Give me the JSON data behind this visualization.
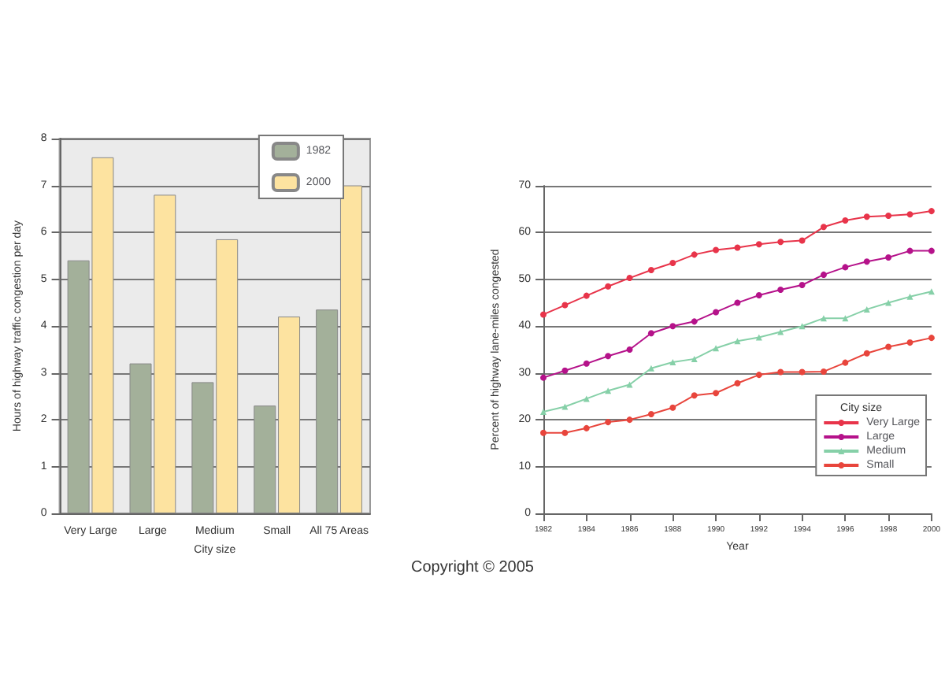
{
  "chart_data": [
    {
      "type": "bar",
      "xlabel": "City size",
      "ylabel": "Hours of highway traffic congestion per day",
      "categories": [
        "Very Large",
        "Large",
        "Medium",
        "Small",
        "All 75 Areas"
      ],
      "series": [
        {
          "name": "1982",
          "color": "#a3b09a",
          "values": [
            5.4,
            3.2,
            2.8,
            2.3,
            4.35
          ]
        },
        {
          "name": "2000",
          "color": "#fde3a0",
          "values": [
            7.6,
            6.8,
            5.85,
            4.2,
            7.0
          ]
        }
      ],
      "ylim": [
        0,
        8
      ],
      "yticks": [
        0,
        1,
        2,
        3,
        4,
        5,
        6,
        7,
        8
      ],
      "grid": "y",
      "legend": "top right",
      "annotations": [
        "Copyright © 2005"
      ]
    },
    {
      "type": "line",
      "xlabel": "Year",
      "ylabel": "Percent of highway lane-miles congested",
      "legend_title": "City size",
      "x": [
        1982,
        1983,
        1984,
        1985,
        1986,
        1987,
        1988,
        1989,
        1990,
        1991,
        1992,
        1993,
        1994,
        1995,
        1996,
        1997,
        1998,
        1999,
        2000
      ],
      "series": [
        {
          "name": "Very Large",
          "color": "#e8344a",
          "values": [
            42.5,
            44.5,
            46.5,
            48.5,
            50.3,
            52,
            53.5,
            55.3,
            56.3,
            56.8,
            57.5,
            58,
            58.3,
            61.2,
            62.6,
            63.4,
            63.6,
            63.9,
            64.6
          ]
        },
        {
          "name": "Large",
          "color": "#b5128a",
          "values": [
            29,
            30.5,
            32,
            33.6,
            35,
            38.5,
            40,
            41,
            43,
            45,
            46.6,
            47.8,
            48.8,
            51,
            52.6,
            53.8,
            54.7,
            56.1,
            56.1
          ]
        },
        {
          "name": "Medium",
          "color": "#86d0a8",
          "marker": "triangle",
          "values": [
            21.7,
            22.8,
            24.5,
            26.2,
            27.5,
            31,
            32.3,
            33,
            35.3,
            36.8,
            37.6,
            38.8,
            40,
            41.7,
            41.7,
            43.6,
            45,
            46.3,
            47.4
          ]
        },
        {
          "name": "Small",
          "color": "#e8453c",
          "values": [
            17.2,
            17.2,
            18.2,
            19.5,
            20,
            21.2,
            22.6,
            25.2,
            25.7,
            27.8,
            29.6,
            30.2,
            30.2,
            30.3,
            32.2,
            34.2,
            35.6,
            36.5,
            37.5
          ]
        }
      ],
      "xlim": [
        1982,
        2000
      ],
      "xticks": [
        1982,
        1984,
        1986,
        1988,
        1990,
        1992,
        1994,
        1996,
        1998,
        2000
      ],
      "ylim": [
        0,
        70
      ],
      "yticks": [
        0,
        10,
        20,
        30,
        40,
        50,
        60,
        70
      ],
      "grid": "y",
      "legend": "bottom right",
      "marker": "circle",
      "line_style": "solid"
    }
  ]
}
